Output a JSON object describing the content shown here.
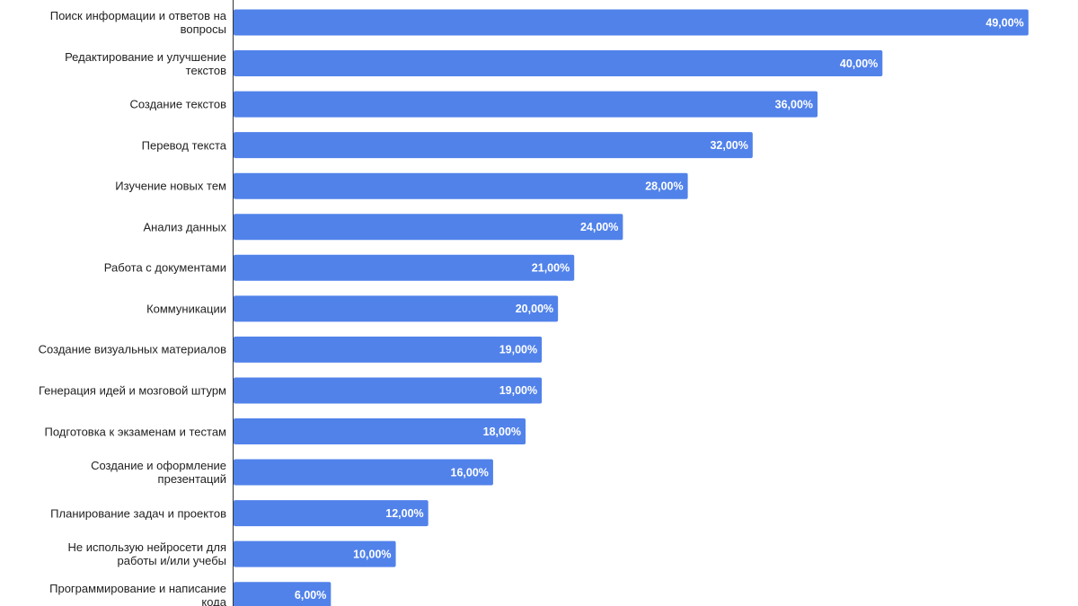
{
  "chart_data": {
    "type": "bar",
    "orientation": "horizontal",
    "categories": [
      "Поиск информации и ответов на вопросы",
      "Редактирование и улучшение текстов",
      "Создание текстов",
      "Перевод текста",
      "Изучение новых тем",
      "Анализ данных",
      "Работа с документами",
      "Коммуникации",
      "Создание визуальных материалов",
      "Генерация идей и мозговой штурм",
      "Подготовка к экзаменам и тестам",
      "Создание и оформление презентаций",
      "Планирование задач и проектов",
      "Не использую нейросети для работы и/или учебы",
      "Программирование и написание кода"
    ],
    "values": [
      49,
      40,
      36,
      32,
      28,
      24,
      21,
      20,
      19,
      19,
      18,
      16,
      12,
      10,
      6
    ],
    "value_labels": [
      "49,00%",
      "40,00%",
      "36,00%",
      "32,00%",
      "28,00%",
      "24,00%",
      "21,00%",
      "20,00%",
      "19,00%",
      "19,00%",
      "18,00%",
      "16,00%",
      "12,00%",
      "10,00%",
      "6,00%"
    ],
    "color": "#5182ea",
    "xlim": [
      0,
      52
    ]
  }
}
